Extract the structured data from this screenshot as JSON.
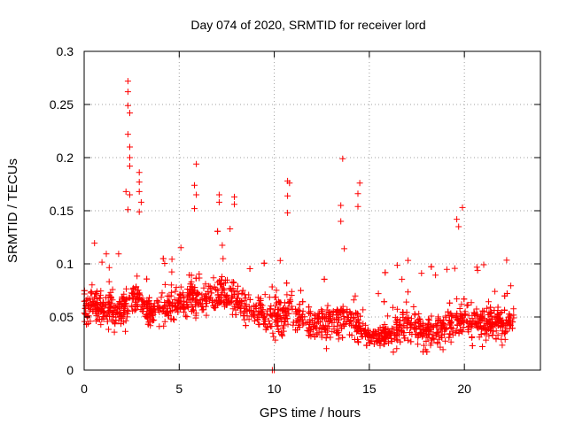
{
  "chart_data": {
    "type": "scatter",
    "title": "Day 074 of 2020, SRMTID for receiver lord",
    "xlabel": "GPS time / hours",
    "ylabel": "SRMTID / TECUs",
    "xlim": [
      0,
      24
    ],
    "ylim": [
      0,
      0.3
    ],
    "x_ticks": [
      0,
      5,
      10,
      15,
      20
    ],
    "x_tick_labels": [
      "0",
      "5",
      "10",
      "15",
      "20"
    ],
    "y_ticks": [
      0,
      0.05,
      0.1,
      0.15,
      0.2,
      0.25,
      0.3
    ],
    "y_tick_labels": [
      "0",
      "0.05",
      "0.1",
      "0.15",
      "0.2",
      "0.25",
      "0.3"
    ],
    "grid": true,
    "marker": "+",
    "point_count": 2000,
    "series": [
      {
        "name": "SRMTID",
        "color": "#ff0000",
        "x_range": [
          0,
          22.6
        ],
        "typical_range": [
          0.02,
          0.09
        ],
        "peaks": [
          {
            "x": 2.3,
            "y": 0.272
          },
          {
            "x": 2.3,
            "y": 0.262
          },
          {
            "x": 2.3,
            "y": 0.249
          },
          {
            "x": 2.4,
            "y": 0.242
          },
          {
            "x": 2.3,
            "y": 0.222
          },
          {
            "x": 2.4,
            "y": 0.21
          },
          {
            "x": 2.4,
            "y": 0.2
          },
          {
            "x": 2.4,
            "y": 0.192
          },
          {
            "x": 2.2,
            "y": 0.168
          },
          {
            "x": 2.4,
            "y": 0.165
          },
          {
            "x": 2.3,
            "y": 0.151
          },
          {
            "x": 2.9,
            "y": 0.186
          },
          {
            "x": 2.9,
            "y": 0.177
          },
          {
            "x": 2.9,
            "y": 0.168
          },
          {
            "x": 3.0,
            "y": 0.158
          },
          {
            "x": 2.9,
            "y": 0.149
          },
          {
            "x": 5.9,
            "y": 0.194
          },
          {
            "x": 5.8,
            "y": 0.174
          },
          {
            "x": 5.9,
            "y": 0.165
          },
          {
            "x": 5.8,
            "y": 0.152
          },
          {
            "x": 7.1,
            "y": 0.165
          },
          {
            "x": 7.1,
            "y": 0.158
          },
          {
            "x": 7.9,
            "y": 0.163
          },
          {
            "x": 7.9,
            "y": 0.156
          },
          {
            "x": 10.7,
            "y": 0.178
          },
          {
            "x": 10.8,
            "y": 0.176
          },
          {
            "x": 10.7,
            "y": 0.164
          },
          {
            "x": 10.7,
            "y": 0.148
          },
          {
            "x": 13.6,
            "y": 0.199
          },
          {
            "x": 13.5,
            "y": 0.155
          },
          {
            "x": 13.5,
            "y": 0.14
          },
          {
            "x": 14.5,
            "y": 0.176
          },
          {
            "x": 14.4,
            "y": 0.166
          },
          {
            "x": 14.4,
            "y": 0.154
          },
          {
            "x": 19.9,
            "y": 0.153
          },
          {
            "x": 19.6,
            "y": 0.142
          },
          {
            "x": 19.7,
            "y": 0.135
          },
          {
            "x": 10.0,
            "y": 0.0
          },
          {
            "x": 9.9,
            "y": 0.0
          }
        ]
      }
    ]
  }
}
